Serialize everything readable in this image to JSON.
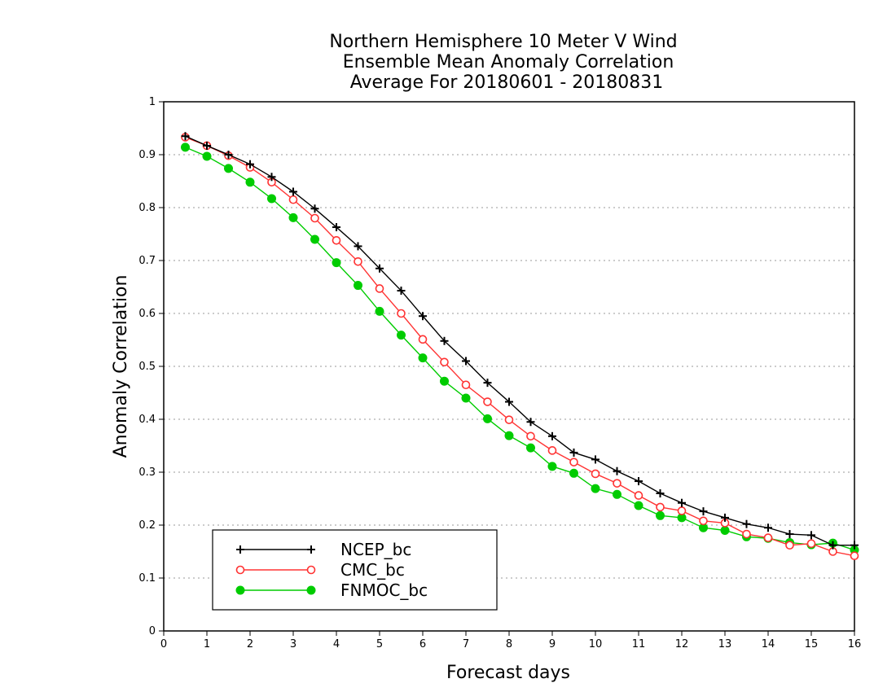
{
  "chart_data": {
    "type": "line",
    "title": [
      "Northern Hemisphere 10 Meter V Wind",
      "Ensemble Mean Anomaly Correlation",
      "Average For 20180601 - 20180831"
    ],
    "xlabel": "Forecast days",
    "ylabel": "Anomaly Correlation",
    "xlim": [
      0,
      16
    ],
    "ylim": [
      0,
      1
    ],
    "xticks": [
      "0",
      "1",
      "2",
      "3",
      "4",
      "5",
      "6",
      "7",
      "8",
      "9",
      "10",
      "11",
      "12",
      "13",
      "14",
      "15",
      "16"
    ],
    "yticks": [
      "0",
      "0.1",
      "0.2",
      "0.3",
      "0.4",
      "0.5",
      "0.6",
      "0.7",
      "0.8",
      "0.9",
      "1"
    ],
    "grid": "horizontal dotted",
    "legend_position": "bottom-left",
    "x": [
      0.5,
      1,
      1.5,
      2,
      2.5,
      3,
      3.5,
      4,
      4.5,
      5,
      5.5,
      6,
      6.5,
      7,
      7.5,
      8,
      8.5,
      9,
      9.5,
      10,
      10.5,
      11,
      11.5,
      12,
      12.5,
      13,
      13.5,
      14,
      14.5,
      15,
      15.5,
      16
    ],
    "series": [
      {
        "name": "NCEP_bc",
        "color": "#000000",
        "marker": "plus",
        "values": [
          0.935,
          0.917,
          0.9,
          0.882,
          0.858,
          0.83,
          0.798,
          0.763,
          0.727,
          0.685,
          0.643,
          0.595,
          0.548,
          0.51,
          0.469,
          0.433,
          0.395,
          0.368,
          0.337,
          0.324,
          0.302,
          0.283,
          0.26,
          0.242,
          0.226,
          0.214,
          0.202,
          0.195,
          0.183,
          0.181,
          0.162,
          0.162
        ]
      },
      {
        "name": "CMC_bc",
        "color": "#ff3333",
        "marker": "open-circle",
        "values": [
          0.933,
          0.917,
          0.898,
          0.876,
          0.848,
          0.815,
          0.78,
          0.738,
          0.698,
          0.647,
          0.6,
          0.551,
          0.508,
          0.465,
          0.433,
          0.399,
          0.368,
          0.341,
          0.319,
          0.297,
          0.279,
          0.256,
          0.234,
          0.227,
          0.208,
          0.204,
          0.183,
          0.176,
          0.162,
          0.165,
          0.15,
          0.142
        ]
      },
      {
        "name": "FNMOC_bc",
        "color": "#00cc00",
        "marker": "filled-circle",
        "values": [
          0.914,
          0.897,
          0.874,
          0.848,
          0.817,
          0.781,
          0.74,
          0.696,
          0.653,
          0.604,
          0.559,
          0.516,
          0.472,
          0.44,
          0.401,
          0.369,
          0.346,
          0.311,
          0.298,
          0.269,
          0.258,
          0.237,
          0.218,
          0.214,
          0.195,
          0.19,
          0.178,
          0.175,
          0.167,
          0.163,
          0.166,
          0.153
        ]
      }
    ]
  }
}
